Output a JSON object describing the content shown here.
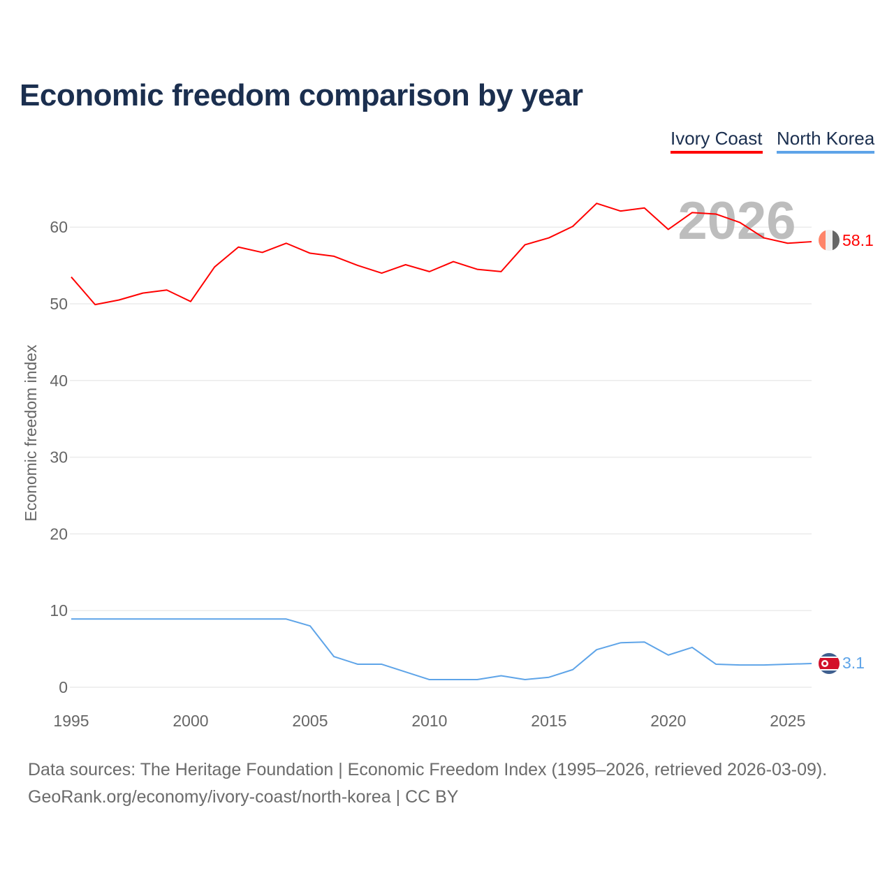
{
  "title": "Economic freedom comparison by year",
  "legend": [
    {
      "label": "Ivory Coast",
      "color": "#ff0000"
    },
    {
      "label": "North Korea",
      "color": "#5ea4e8"
    }
  ],
  "watermark_year": "2026",
  "footer": {
    "line1": "Data sources: The Heritage Foundation | Economic Freedom Index (1995–2026, retrieved 2026-03-09).",
    "line2": "GeoRank.org/economy/ivory-coast/north-korea | CC BY"
  },
  "chart_data": {
    "type": "line",
    "title": "Economic freedom comparison by year",
    "xlabel": "",
    "ylabel": "Economic freedom index",
    "xlim": [
      1995,
      2026
    ],
    "ylim": [
      0,
      66
    ],
    "xticks": [
      1995,
      2000,
      2005,
      2010,
      2015,
      2020,
      2025
    ],
    "yticks": [
      0,
      10,
      20,
      30,
      40,
      50,
      60
    ],
    "grid": true,
    "legend_position": "top-right",
    "x": [
      1995,
      1996,
      1997,
      1998,
      1999,
      2000,
      2001,
      2002,
      2003,
      2004,
      2005,
      2006,
      2007,
      2008,
      2009,
      2010,
      2011,
      2012,
      2013,
      2014,
      2015,
      2016,
      2017,
      2018,
      2019,
      2020,
      2021,
      2022,
      2023,
      2024,
      2025,
      2026
    ],
    "series": [
      {
        "name": "Ivory Coast",
        "color": "#ff0000",
        "end_label": "58.1",
        "values": [
          53.5,
          49.9,
          50.5,
          51.4,
          51.8,
          50.3,
          54.8,
          57.4,
          56.7,
          57.9,
          56.6,
          56.2,
          55.0,
          54.0,
          55.1,
          54.2,
          55.5,
          54.5,
          54.2,
          57.7,
          58.6,
          60.1,
          63.1,
          62.1,
          62.5,
          59.7,
          61.9,
          61.7,
          60.6,
          58.6,
          57.9,
          58.1
        ]
      },
      {
        "name": "North Korea",
        "color": "#5ea4e8",
        "end_label": "3.1",
        "values": [
          8.9,
          8.9,
          8.9,
          8.9,
          8.9,
          8.9,
          8.9,
          8.9,
          8.9,
          8.9,
          8.0,
          4.0,
          3.0,
          3.0,
          2.0,
          1.0,
          1.0,
          1.0,
          1.5,
          1.0,
          1.3,
          2.3,
          4.9,
          5.8,
          5.9,
          4.2,
          5.2,
          3.0,
          2.9,
          2.9,
          3.0,
          3.1
        ]
      }
    ]
  }
}
